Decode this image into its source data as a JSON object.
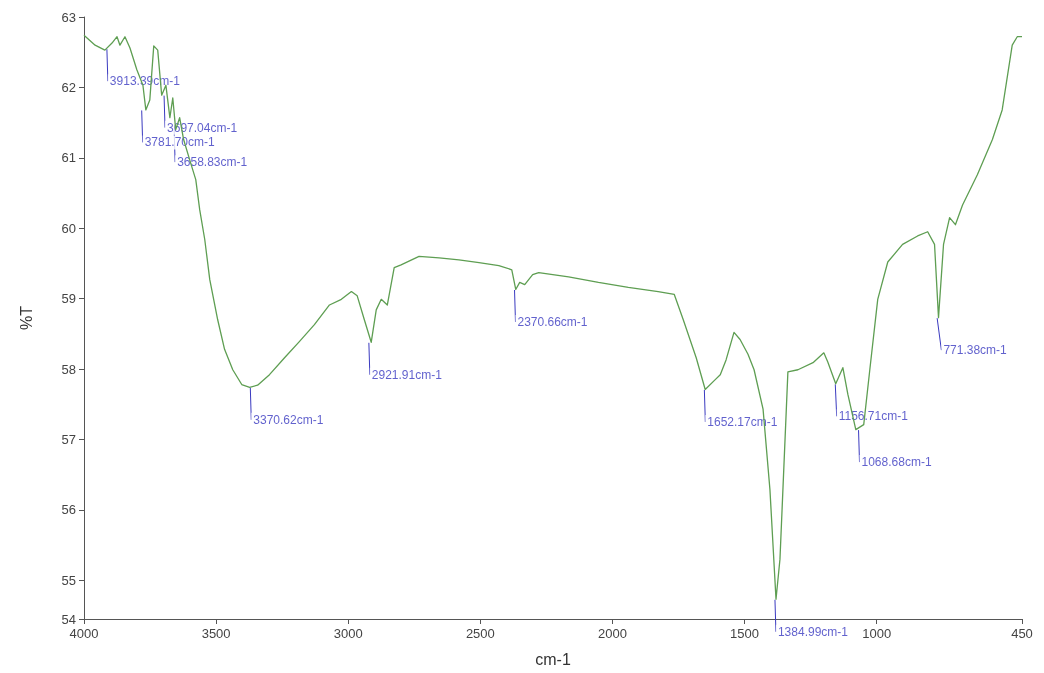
{
  "chart_data": {
    "type": "line",
    "xlabel": "cm-1",
    "ylabel": "%T",
    "xlim": [
      4000,
      450
    ],
    "xticks": [
      4000,
      3500,
      3000,
      2500,
      2000,
      1500,
      1000,
      450
    ],
    "ylim": [
      54.45,
      63
    ],
    "yticks": [
      {
        "value": 54.45,
        "label": "54"
      },
      55,
      56,
      57,
      58,
      59,
      60,
      61,
      62,
      63
    ],
    "grid": false,
    "marker": "none",
    "line_style": "solid",
    "series": [
      {
        "color": "#5e9e52",
        "x": [
          4000,
          3958,
          3921,
          3894,
          3875,
          3864,
          3845,
          3826,
          3800,
          3777,
          3766,
          3751,
          3736,
          3721,
          3706,
          3690,
          3675,
          3664,
          3653,
          3638,
          3623,
          3600,
          3577,
          3562,
          3543,
          3524,
          3494,
          3468,
          3437,
          3403,
          3373,
          3343,
          3298,
          3241,
          3185,
          3128,
          3071,
          3026,
          2988,
          2966,
          2939,
          2913,
          2894,
          2875,
          2852,
          2826,
          2800,
          2732,
          2656,
          2581,
          2505,
          2430,
          2381,
          2366,
          2351,
          2332,
          2302,
          2279,
          2166,
          2053,
          1940,
          1827,
          1766,
          1732,
          1683,
          1649,
          1611,
          1592,
          1570,
          1540,
          1517,
          1487,
          1464,
          1430,
          1404,
          1381,
          1366,
          1336,
          1298,
          1241,
          1200,
          1185,
          1155,
          1128,
          1109,
          1079,
          1049,
          1026,
          996,
          958,
          902,
          845,
          807,
          781,
          766,
          747,
          724,
          702,
          675,
          619,
          562,
          525,
          487,
          468,
          450
        ],
        "values": [
          62.74,
          62.6,
          62.53,
          62.63,
          62.72,
          62.6,
          62.72,
          62.56,
          62.25,
          62.03,
          61.68,
          61.82,
          62.59,
          62.53,
          61.89,
          62.03,
          61.57,
          61.85,
          61.4,
          61.57,
          61.26,
          60.97,
          60.69,
          60.26,
          59.84,
          59.27,
          58.7,
          58.28,
          57.99,
          57.78,
          57.74,
          57.77,
          57.92,
          58.16,
          58.39,
          58.63,
          58.91,
          58.99,
          59.1,
          59.04,
          58.7,
          58.38,
          58.84,
          58.99,
          58.91,
          59.44,
          59.48,
          59.6,
          59.58,
          59.55,
          59.51,
          59.47,
          59.41,
          59.13,
          59.23,
          59.2,
          59.34,
          59.37,
          59.31,
          59.23,
          59.16,
          59.1,
          59.06,
          58.7,
          58.16,
          57.71,
          57.85,
          57.92,
          58.13,
          58.52,
          58.42,
          58.21,
          57.99,
          57.43,
          56.29,
          54.73,
          55.3,
          57.96,
          57.99,
          58.09,
          58.23,
          58.1,
          57.79,
          58.02,
          57.64,
          57.14,
          57.21,
          57.99,
          58.99,
          59.52,
          59.77,
          59.89,
          59.95,
          59.77,
          58.73,
          59.77,
          60.15,
          60.05,
          60.33,
          60.76,
          61.26,
          61.68,
          62.6,
          62.72,
          62.72
        ]
      }
    ],
    "annotations": [
      {
        "text": "3913.39cm-1",
        "x": 3913.39,
        "y": 62.55
      },
      {
        "text": "3781.70cm-1",
        "x": 3781.7,
        "y": 61.68
      },
      {
        "text": "3658.83cm-1",
        "x": 3658.83,
        "y": 61.4
      },
      {
        "text": "3697.04cm-1",
        "x": 3697.04,
        "y": 61.89
      },
      {
        "text": "3370.62cm-1",
        "x": 3370.62,
        "y": 57.74
      },
      {
        "text": "2921.91cm-1",
        "x": 2921.91,
        "y": 58.38
      },
      {
        "text": "2370.66cm-1",
        "x": 2370.66,
        "y": 59.13
      },
      {
        "text": "1652.17cm-1",
        "x": 1652.17,
        "y": 57.71
      },
      {
        "text": "1384.99cm-1",
        "x": 1384.99,
        "y": 54.73
      },
      {
        "text": "1156.71cm-1",
        "x": 1156.71,
        "y": 57.79
      },
      {
        "text": "1068.68cm-1",
        "x": 1068.68,
        "y": 57.14
      },
      {
        "text": "771.38cm-1",
        "x": 771.38,
        "y": 58.73
      }
    ]
  }
}
